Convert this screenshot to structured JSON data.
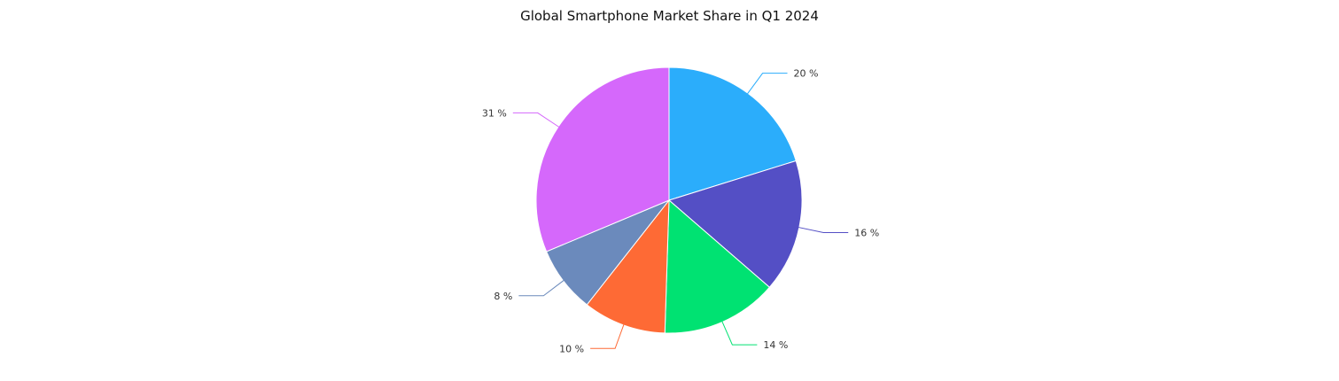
{
  "chart_data": {
    "type": "pie",
    "title": "Global Smartphone Market Share in Q1 2024",
    "slices": [
      {
        "value": 20,
        "label": "20 %",
        "color": "#2BADFB"
      },
      {
        "value": 16,
        "label": "16 %",
        "color": "#544FC5"
      },
      {
        "value": 14,
        "label": "14 %",
        "color": "#00E272"
      },
      {
        "value": 10,
        "label": "10 %",
        "color": "#FE6A35"
      },
      {
        "value": 8,
        "label": "8 %",
        "color": "#6B8ABC"
      },
      {
        "value": 31,
        "label": "31 %",
        "color": "#D568FB"
      }
    ],
    "start_angle": "top",
    "direction": "clockwise",
    "legend": "none",
    "data_labels": "outside-with-connectors"
  }
}
